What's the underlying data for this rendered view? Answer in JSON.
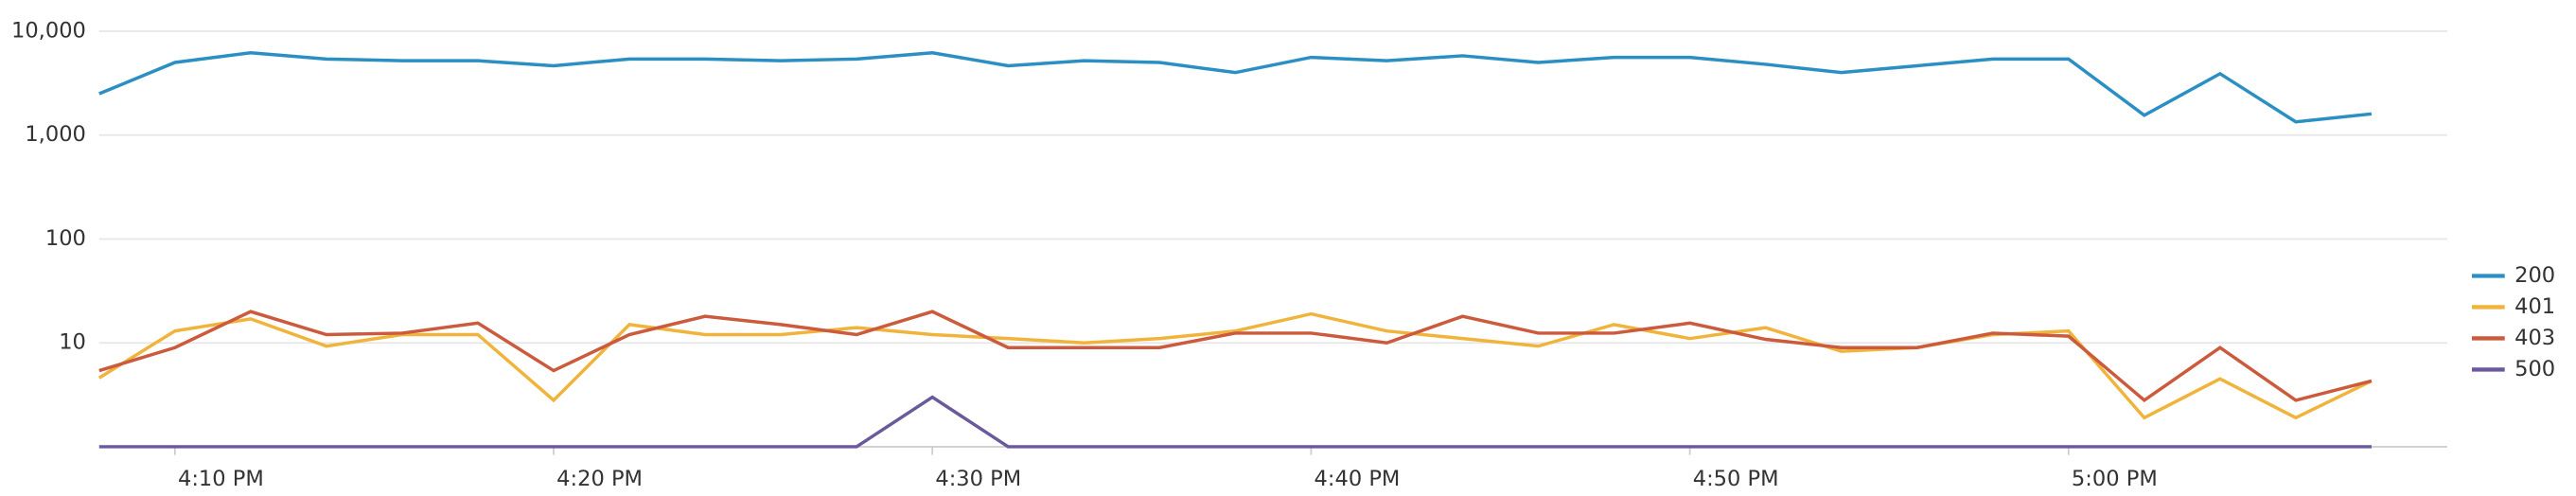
{
  "chart_data": {
    "type": "line",
    "x": [
      "16:08",
      "16:10",
      "16:12",
      "16:14",
      "16:16",
      "16:18",
      "16:20",
      "16:22",
      "16:24",
      "16:26",
      "16:28",
      "16:30",
      "16:32",
      "16:34",
      "16:36",
      "16:38",
      "16:40",
      "16:42",
      "16:44",
      "16:46",
      "16:48",
      "16:50",
      "16:52",
      "16:54",
      "16:56",
      "16:58",
      "17:00",
      "17:02",
      "17:04",
      "17:06",
      "17:08"
    ],
    "xlim": [
      "16:08",
      "17:10"
    ],
    "xticks": [
      {
        "value": "16:10",
        "label": "4:10 PM"
      },
      {
        "value": "16:20",
        "label": "4:20 PM"
      },
      {
        "value": "16:30",
        "label": "4:30 PM"
      },
      {
        "value": "16:40",
        "label": "4:40 PM"
      },
      {
        "value": "16:50",
        "label": "4:50 PM"
      },
      {
        "value": "17:00",
        "label": "5:00 PM"
      }
    ],
    "ylim": [
      1,
      10000
    ],
    "yticks": [
      {
        "value": 10000,
        "label": "10,000"
      },
      {
        "value": 1000,
        "label": "1,000"
      },
      100,
      10
    ],
    "log_y": true,
    "grid": true,
    "legend": "right",
    "series": [
      {
        "name": "200",
        "color": "#2b8fc4",
        "values": [
          2500,
          5000,
          6200,
          5400,
          5200,
          5200,
          4650,
          5400,
          5400,
          5200,
          5400,
          6200,
          4650,
          5200,
          5000,
          4000,
          5600,
          5200,
          5800,
          5000,
          5600,
          5600,
          4800,
          4000,
          4650,
          5400,
          5400,
          1550,
          3900,
          1340,
          1600
        ]
      },
      {
        "name": "401",
        "color": "#f0b43c",
        "values": [
          4.6,
          13,
          17,
          9.3,
          12,
          12,
          2.8,
          15,
          12,
          12,
          14,
          12,
          11,
          10,
          11,
          13,
          19,
          13,
          11,
          9.3,
          15,
          11,
          14,
          8.3,
          9,
          12,
          13,
          1.9,
          4.5,
          1.9,
          4.3
        ]
      },
      {
        "name": "403",
        "color": "#cc5a3c",
        "values": [
          5.4,
          9,
          20,
          12,
          12.4,
          15.5,
          5.4,
          12,
          18,
          15,
          12,
          20,
          9,
          9,
          9,
          12.4,
          12.4,
          10,
          18,
          12.4,
          12.4,
          15.5,
          10.8,
          9,
          9,
          12.4,
          11.6,
          2.8,
          9,
          2.8,
          4.3
        ]
      },
      {
        "name": "500",
        "color": "#6a5a9c",
        "values": [
          1,
          1,
          1,
          1,
          1,
          1,
          1,
          1,
          1,
          1,
          1,
          3,
          1,
          1,
          1,
          1,
          1,
          1,
          1,
          1,
          1,
          1,
          1,
          1,
          1,
          1,
          1,
          1,
          1,
          1,
          1
        ]
      }
    ]
  }
}
